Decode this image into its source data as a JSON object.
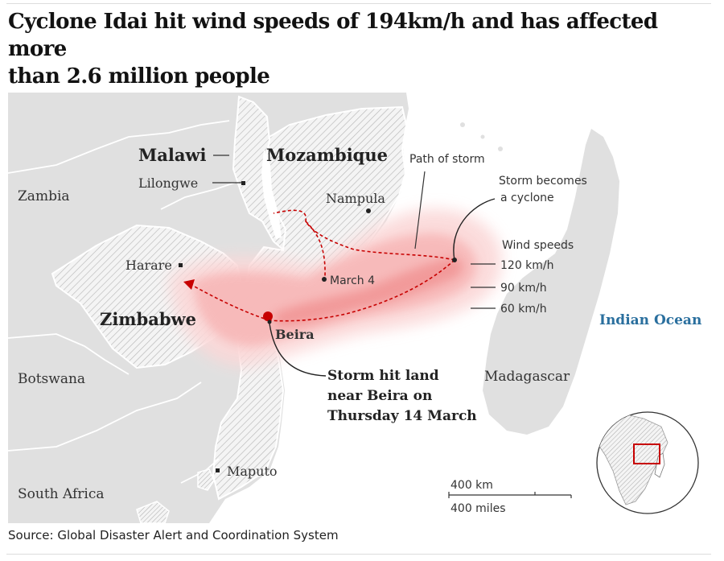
{
  "title": {
    "line1": "Cyclone Idai hit wind speeds of 194km/h and has affected more",
    "line2": "than 2.6 million people"
  },
  "countries": {
    "malawi": "Malawi",
    "mozambique": "Mozambique",
    "zambia": "Zambia",
    "zimbabwe": "Zimbabwe",
    "botswana": "Botswana",
    "south_africa": "South Africa",
    "madagascar": "Madagascar"
  },
  "cities": {
    "lilongwe": "Lilongwe",
    "nampula": "Nampula",
    "harare": "Harare",
    "beira": "Beira",
    "maputo": "Maputo"
  },
  "ocean": "Indian Ocean",
  "annotations": {
    "path_of_storm": "Path of storm",
    "cyclone_line1": "Storm becomes",
    "cyclone_line2": "a cyclone",
    "march4": "March 4",
    "landfall_line1": "Storm hit land",
    "landfall_line2": "near Beira on",
    "landfall_line3": "Thursday 14 March"
  },
  "wind_speeds": {
    "title": "Wind speeds",
    "levels": [
      "120 km/h",
      "90 km/h",
      "60 km/h"
    ]
  },
  "scale": {
    "km": "400 km",
    "miles": "400 miles"
  },
  "colors": {
    "land": "#e0e0e0",
    "hatch_land": "#f2f2f2",
    "hatch_stroke": "#b5b5b5",
    "border": "#ffffff",
    "wind_60": "#fbd8d8",
    "wind_90": "#f7b5b5",
    "wind_120": "#f08f8f",
    "storm_path": "#c70000",
    "ocean_label": "#2a6f9e"
  },
  "source": "Source: Global Disaster Alert and Coordination System"
}
